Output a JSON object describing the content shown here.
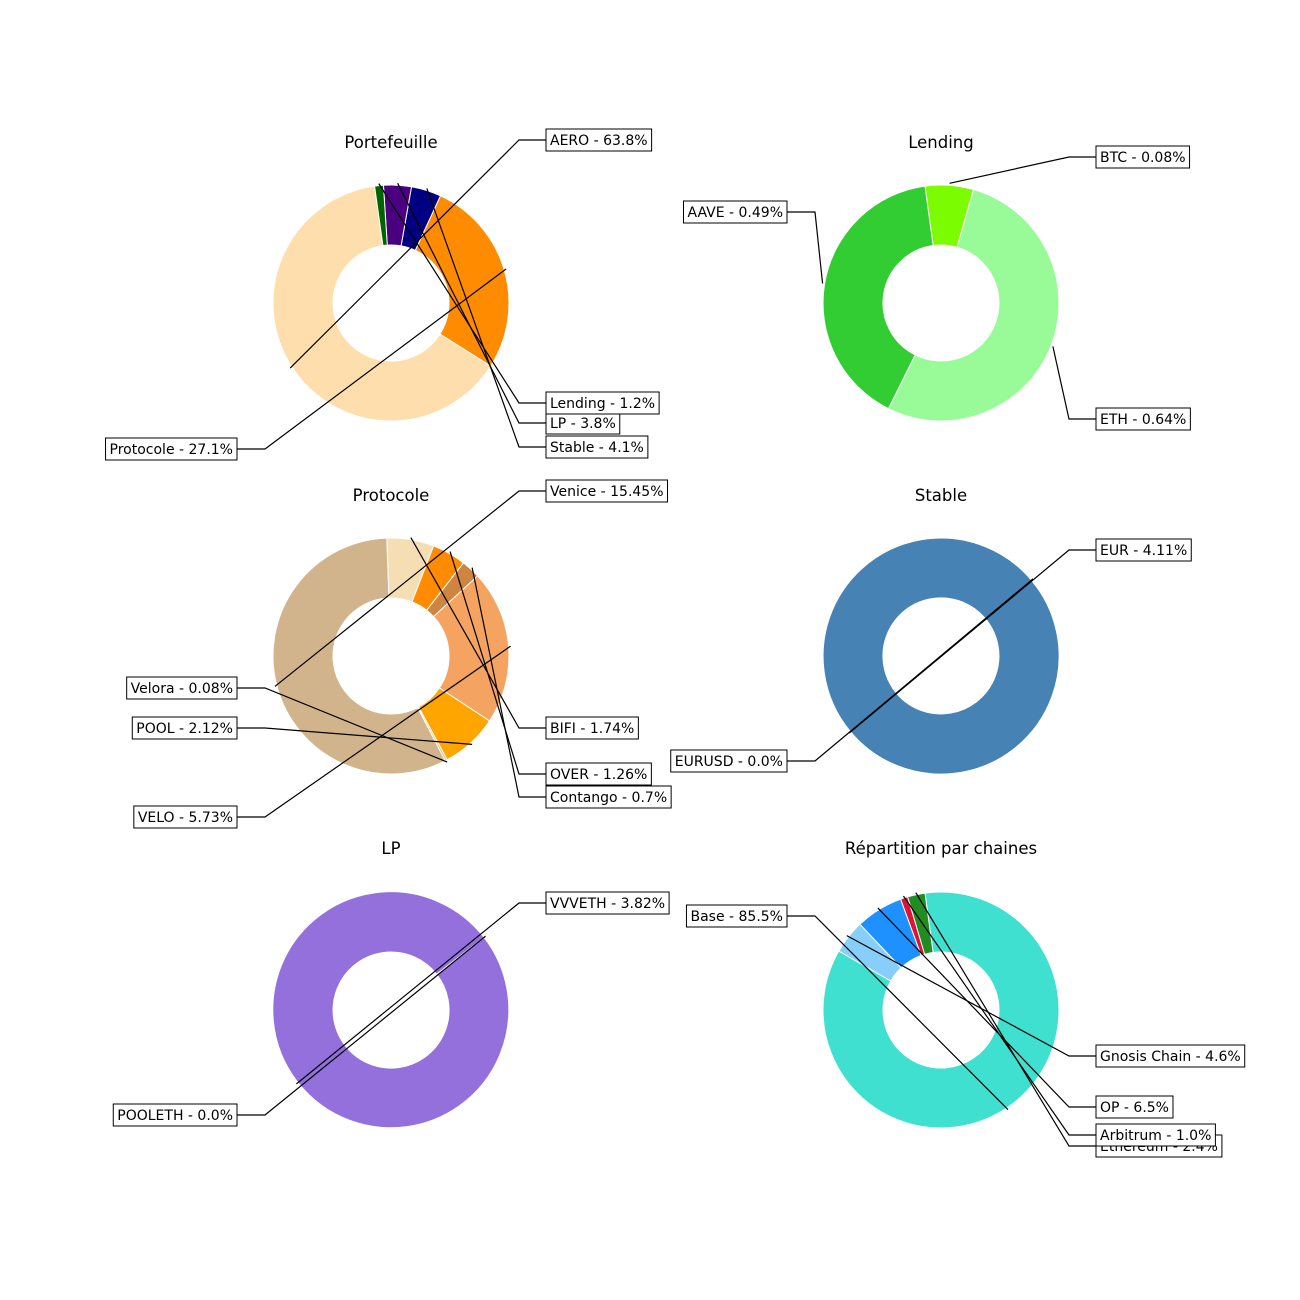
{
  "chart_data": [
    {
      "type": "pie",
      "donut": true,
      "title": "Portefeuille",
      "slices": [
        {
          "label": "AERO - 63.8%",
          "value": 63.8,
          "color": "#FFDEAD"
        },
        {
          "label": "Protocole - 27.1%",
          "value": 27.1,
          "color": "#FF8C00"
        },
        {
          "label": "Stable - 4.1%",
          "value": 4.1,
          "color": "#000080"
        },
        {
          "label": "LP - 3.8%",
          "value": 3.8,
          "color": "#4B0082"
        },
        {
          "label": "Lending - 1.2%",
          "value": 1.2,
          "color": "#006400"
        }
      ]
    },
    {
      "type": "pie",
      "donut": true,
      "title": "Lending",
      "slices": [
        {
          "label": "BTC - 0.08%",
          "value": 0.08,
          "color": "#7CFC00"
        },
        {
          "label": "AAVE - 0.49%",
          "value": 0.49,
          "color": "#32CD32"
        },
        {
          "label": "ETH - 0.64%",
          "value": 0.64,
          "color": "#98FB98"
        }
      ]
    },
    {
      "type": "pie",
      "donut": true,
      "title": "Protocole",
      "slices": [
        {
          "label": "Venice - 15.45%",
          "value": 15.45,
          "color": "#D2B48C"
        },
        {
          "label": "Velora - 0.08%",
          "value": 0.08,
          "color": "#DEB887"
        },
        {
          "label": "POOL - 2.12%",
          "value": 2.12,
          "color": "#FFA500"
        },
        {
          "label": "VELO - 5.73%",
          "value": 5.73,
          "color": "#F4A460"
        },
        {
          "label": "Contango - 0.7%",
          "value": 0.7,
          "color": "#CD853F"
        },
        {
          "label": "OVER - 1.26%",
          "value": 1.26,
          "color": "#FF8C00"
        },
        {
          "label": "BIFI - 1.74%",
          "value": 1.74,
          "color": "#F5DEB3"
        }
      ]
    },
    {
      "type": "pie",
      "donut": true,
      "title": "Stable",
      "slices": [
        {
          "label": "EUR - 4.11%",
          "value": 4.11,
          "color": "#4682B4"
        },
        {
          "label": "EURUSD - 0.0%",
          "value": 0.0,
          "color": "#4169E1"
        }
      ]
    },
    {
      "type": "pie",
      "donut": true,
      "title": "LP",
      "slices": [
        {
          "label": "VVVETH - 3.82%",
          "value": 3.82,
          "color": "#9370DB"
        },
        {
          "label": "POOLETH - 0.0%",
          "value": 0.0,
          "color": "#8A2BE2"
        }
      ]
    },
    {
      "type": "pie",
      "donut": true,
      "title": "Répartition par chaines",
      "slices": [
        {
          "label": "Base - 85.5%",
          "value": 85.5,
          "color": "#40E0D0"
        },
        {
          "label": "Ethereum - 2.4%",
          "value": 2.4,
          "color": "#228B22"
        },
        {
          "label": "Arbitrum - 1.0%",
          "value": 1.0,
          "color": "#DC143C"
        },
        {
          "label": "OP - 6.5%",
          "value": 6.5,
          "color": "#1E90FF"
        },
        {
          "label": "Gnosis Chain - 4.6%",
          "value": 4.6,
          "color": "#87CEFA"
        }
      ]
    }
  ]
}
